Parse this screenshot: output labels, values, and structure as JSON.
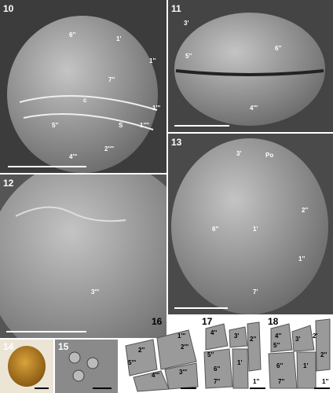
{
  "panels": [
    {
      "number": "10",
      "labels": [
        "6''",
        "1'",
        "1''",
        "7''",
        "c",
        "1'''",
        "5''",
        "S",
        "1''''",
        "2''''",
        "4'''"
      ]
    },
    {
      "number": "11",
      "labels": [
        "3'",
        "5''",
        "6''",
        "4'''"
      ]
    },
    {
      "number": "12",
      "labels": [
        "3'''"
      ]
    },
    {
      "number": "13",
      "labels": [
        "3'",
        "Po",
        "2''",
        "6''",
        "1'",
        "1''",
        "7'"
      ]
    },
    {
      "number": "14",
      "labels": []
    },
    {
      "number": "15",
      "labels": []
    },
    {
      "number": "16",
      "labels": [
        "2''",
        "1'''",
        "2'''",
        "5'''",
        "4'''",
        "3'''"
      ]
    },
    {
      "number": "17",
      "labels": [
        "4''",
        "5''",
        "3'",
        "2''",
        "1'",
        "6''",
        "1''",
        "7''"
      ]
    },
    {
      "number": "18",
      "labels": [
        "4''",
        "5''",
        "3'",
        "2'",
        "2''",
        "6''",
        "1'",
        "7''",
        "1''"
      ]
    }
  ]
}
